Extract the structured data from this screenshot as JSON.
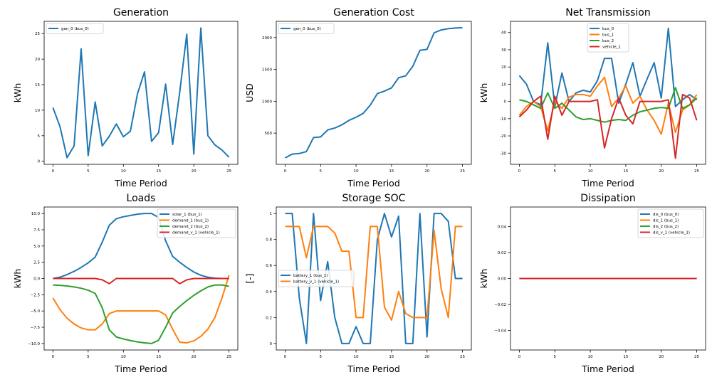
{
  "chart_data": [
    {
      "type": "line",
      "title": "Generation",
      "xlabel": "Time Period",
      "ylabel": "kWh",
      "xlim": [
        -1.25,
        26.25
      ],
      "ylim": [
        -0.6,
        27.4
      ],
      "xticks": [
        0,
        5,
        10,
        15,
        20,
        25
      ],
      "yticks": [
        0,
        5,
        10,
        15,
        20,
        25
      ],
      "legend": {
        "position": "top-left"
      },
      "series": [
        {
          "name": "gen_0 (bus_0)",
          "color": "#1f77b4",
          "x": [
            0,
            1,
            2,
            3,
            4,
            5,
            6,
            7,
            8,
            9,
            10,
            11,
            12,
            13,
            14,
            15,
            16,
            17,
            18,
            19,
            20,
            21,
            22,
            23,
            24,
            25
          ],
          "y": [
            10.5,
            6.8,
            0.7,
            3.0,
            22.0,
            1.1,
            11.6,
            3.0,
            4.9,
            7.3,
            4.8,
            5.9,
            13.2,
            17.5,
            3.9,
            5.6,
            15.1,
            3.3,
            13.5,
            24.9,
            1.4,
            26.1,
            5.0,
            3.2,
            2.2,
            0.8
          ]
        }
      ]
    },
    {
      "type": "line",
      "title": "Generation Cost",
      "xlabel": "Time Period",
      "ylabel": "USD",
      "xlim": [
        -1.25,
        26.25
      ],
      "ylim": [
        10,
        2255
      ],
      "xticks": [
        0,
        5,
        10,
        15,
        20,
        25
      ],
      "yticks": [
        500,
        1000,
        1500,
        2000
      ],
      "legend": {
        "position": "top-left"
      },
      "series": [
        {
          "name": "gen_0 (bus_0)",
          "color": "#1f77b4",
          "x": [
            0,
            1,
            2,
            3,
            4,
            5,
            6,
            7,
            8,
            9,
            10,
            11,
            12,
            13,
            14,
            15,
            16,
            17,
            18,
            19,
            20,
            21,
            22,
            23,
            24,
            25
          ],
          "y": [
            110,
            170,
            180,
            210,
            430,
            440,
            550,
            580,
            630,
            700,
            750,
            810,
            940,
            1120,
            1160,
            1210,
            1370,
            1400,
            1550,
            1800,
            1815,
            2075,
            2120,
            2140,
            2150,
            2155
          ]
        }
      ]
    },
    {
      "type": "line",
      "title": "Net Transmission",
      "xlabel": "Time Period",
      "ylabel": "kWh",
      "xlim": [
        -1.25,
        26.25
      ],
      "ylim": [
        -36.5,
        46.5
      ],
      "xticks": [
        0,
        5,
        10,
        15,
        20,
        25
      ],
      "yticks": [
        -30,
        -20,
        -10,
        0,
        10,
        20,
        30,
        40
      ],
      "legend": {
        "position": "top-center"
      },
      "series": [
        {
          "name": "bus_0",
          "color": "#1f77b4",
          "x": [
            0,
            1,
            2,
            3,
            4,
            5,
            6,
            7,
            8,
            9,
            10,
            11,
            12,
            13,
            14,
            15,
            16,
            17,
            18,
            19,
            20,
            21,
            22,
            23,
            24,
            25
          ],
          "y": [
            15,
            10,
            0,
            -2,
            34,
            -3,
            16.5,
            0,
            5,
            6.5,
            5.5,
            12,
            25,
            25,
            -1,
            10,
            22.5,
            3,
            13,
            22.5,
            2,
            42.5,
            -3,
            1,
            4,
            1
          ]
        },
        {
          "name": "bus_1",
          "color": "#ff7f0e",
          "x": [
            0,
            1,
            2,
            3,
            4,
            5,
            6,
            7,
            8,
            9,
            10,
            11,
            12,
            13,
            14,
            15,
            16,
            17,
            18,
            19,
            20,
            21,
            22,
            23,
            24,
            25
          ],
          "y": [
            -8,
            -3,
            0,
            -3,
            -17,
            0,
            -4,
            2.5,
            4,
            4,
            3,
            9,
            14,
            -3,
            2,
            9,
            -1,
            3,
            -5,
            -11,
            -19,
            -1,
            -18,
            -5,
            -2,
            4
          ]
        },
        {
          "name": "bus_2",
          "color": "#2ca02c",
          "x": [
            0,
            1,
            2,
            3,
            4,
            5,
            6,
            7,
            8,
            9,
            10,
            11,
            12,
            13,
            14,
            15,
            16,
            17,
            18,
            19,
            20,
            21,
            22,
            23,
            24,
            25
          ],
          "y": [
            1,
            0,
            -2,
            -4,
            5,
            -4,
            -1,
            -5,
            -9,
            -10.5,
            -10,
            -11,
            -12,
            -11,
            -10.5,
            -11,
            -8,
            -6,
            -5,
            -4,
            -3.5,
            -4,
            8,
            -4,
            -2,
            2
          ]
        },
        {
          "name": "vehicle_1",
          "color": "#d62728",
          "x": [
            0,
            1,
            2,
            3,
            4,
            5,
            6,
            7,
            8,
            9,
            10,
            11,
            12,
            13,
            14,
            15,
            16,
            17,
            18,
            19,
            20,
            21,
            22,
            23,
            24,
            25
          ],
          "y": [
            -9,
            -5,
            0,
            3,
            -22,
            3,
            -8,
            0,
            0,
            0,
            0,
            1,
            -27,
            -10,
            2,
            -8,
            -13,
            0,
            0,
            0,
            0,
            1,
            -33,
            4,
            2,
            -11
          ]
        }
      ]
    },
    {
      "type": "line",
      "title": "Loads",
      "xlabel": "Time Period",
      "ylabel": "kWh",
      "xlim": [
        -1.25,
        26.25
      ],
      "ylim": [
        -11,
        11
      ],
      "xticks": [
        0,
        5,
        10,
        15,
        20,
        25
      ],
      "yticks": [
        -10.0,
        -7.5,
        -5.0,
        -2.5,
        0.0,
        2.5,
        5.0,
        7.5,
        10.0
      ],
      "ytick_labels": [
        "−10.0",
        "−7.5",
        "−5.0",
        "−2.5",
        "0.0",
        "2.5",
        "5.0",
        "7.5",
        "10.0"
      ],
      "legend": {
        "position": "top-right"
      },
      "series": [
        {
          "name": "solar_1 (bus_1)",
          "color": "#1f77b4",
          "x": [
            0,
            1,
            2,
            3,
            4,
            5,
            6,
            7,
            8,
            9,
            10,
            11,
            12,
            13,
            14,
            15,
            16,
            17,
            18,
            19,
            20,
            21,
            22,
            23,
            24,
            25
          ],
          "y": [
            0,
            0.2,
            0.6,
            1.1,
            1.7,
            2.4,
            3.3,
            5.6,
            8.2,
            9.2,
            9.5,
            9.7,
            9.9,
            10,
            10,
            9.4,
            5.8,
            3.4,
            2.5,
            1.7,
            1.0,
            0.5,
            0.2,
            0.05,
            0,
            0
          ]
        },
        {
          "name": "demand_1 (bus_1)",
          "color": "#ff7f0e",
          "x": [
            0,
            1,
            2,
            3,
            4,
            5,
            6,
            7,
            8,
            9,
            10,
            11,
            12,
            13,
            14,
            15,
            16,
            17,
            18,
            19,
            20,
            21,
            22,
            23,
            24,
            25
          ],
          "y": [
            -3,
            -4.8,
            -6.1,
            -7.0,
            -7.6,
            -7.9,
            -7.9,
            -7.0,
            -5.4,
            -5.0,
            -5.0,
            -5.0,
            -5.0,
            -5.0,
            -5.0,
            -5.0,
            -5.6,
            -7.8,
            -9.8,
            -9.9,
            -9.6,
            -8.9,
            -7.8,
            -6.0,
            -3.0,
            0.5
          ]
        },
        {
          "name": "demand_2 (bus_2)",
          "color": "#2ca02c",
          "x": [
            0,
            1,
            2,
            3,
            4,
            5,
            6,
            7,
            8,
            9,
            10,
            11,
            12,
            13,
            14,
            15,
            16,
            17,
            18,
            19,
            20,
            21,
            22,
            23,
            24,
            25
          ],
          "y": [
            -1.0,
            -1.05,
            -1.15,
            -1.3,
            -1.5,
            -1.8,
            -2.3,
            -4.5,
            -7.9,
            -9.0,
            -9.3,
            -9.55,
            -9.75,
            -9.9,
            -10.0,
            -9.5,
            -7.5,
            -5.3,
            -4.3,
            -3.4,
            -2.6,
            -1.9,
            -1.3,
            -1.0,
            -1.0,
            -1.2
          ]
        },
        {
          "name": "demand_v_1 (vehicle_1)",
          "color": "#d62728",
          "x": [
            0,
            1,
            2,
            3,
            4,
            5,
            6,
            7,
            8,
            9,
            10,
            11,
            12,
            13,
            14,
            15,
            16,
            17,
            18,
            19,
            20,
            21,
            22,
            23,
            24,
            25
          ],
          "y": [
            0,
            0,
            0,
            0,
            0,
            0,
            0,
            -0.2,
            -0.8,
            0,
            0,
            0,
            0,
            0,
            0,
            0,
            0,
            0,
            -0.8,
            -0.2,
            0,
            0,
            0,
            0,
            0,
            0
          ]
        }
      ]
    },
    {
      "type": "line",
      "title": "Storage SOC",
      "xlabel": "Time Period",
      "ylabel": "[-]",
      "xlim": [
        -1.25,
        26.25
      ],
      "ylim": [
        -0.05,
        1.05
      ],
      "xticks": [
        0,
        5,
        10,
        15,
        20,
        25
      ],
      "yticks": [
        0.0,
        0.2,
        0.4,
        0.6,
        0.8,
        1.0
      ],
      "legend": {
        "position": "center-left"
      },
      "series": [
        {
          "name": "battery_1 (bus_1)",
          "color": "#1f77b4",
          "x": [
            0,
            1,
            2,
            3,
            4,
            5,
            6,
            7,
            8,
            9,
            10,
            11,
            12,
            13,
            14,
            15,
            16,
            17,
            18,
            19,
            20,
            21,
            22,
            23,
            24,
            25
          ],
          "y": [
            1.0,
            1.0,
            0.35,
            0.0,
            1.0,
            0.33,
            0.63,
            0.2,
            0.0,
            0.0,
            0.13,
            0.0,
            0.0,
            0.8,
            1.0,
            0.82,
            0.98,
            0.0,
            0.0,
            1.0,
            0.05,
            1.0,
            1.0,
            0.94,
            0.5,
            0.5
          ]
        },
        {
          "name": "battery_v_1 (vehicle_1)",
          "color": "#ff7f0e",
          "x": [
            0,
            1,
            2,
            3,
            4,
            5,
            6,
            7,
            8,
            9,
            10,
            11,
            12,
            13,
            14,
            15,
            16,
            17,
            18,
            19,
            20,
            21,
            22,
            23,
            24,
            25
          ],
          "y": [
            0.9,
            0.9,
            0.9,
            0.66,
            0.9,
            0.9,
            0.9,
            0.85,
            0.71,
            0.71,
            0.2,
            0.2,
            0.9,
            0.9,
            0.28,
            0.18,
            0.4,
            0.23,
            0.2,
            0.2,
            0.2,
            0.87,
            0.42,
            0.2,
            0.9,
            0.9
          ]
        }
      ]
    },
    {
      "type": "line",
      "title": "Dissipation",
      "xlabel": "Time Period",
      "ylabel": "kWh",
      "xlim": [
        -1.25,
        26.25
      ],
      "ylim": [
        -0.055,
        0.055
      ],
      "xticks": [
        0,
        5,
        10,
        15,
        20,
        25
      ],
      "yticks": [
        -0.04,
        -0.02,
        0.0,
        0.02,
        0.04
      ],
      "ytick_labels": [
        "−0.04",
        "−0.02",
        "0.00",
        "0.02",
        "0.04"
      ],
      "legend": {
        "position": "top-right"
      },
      "series": [
        {
          "name": "dis_0 (bus_0)",
          "color": "#1f77b4",
          "x": [
            0,
            25
          ],
          "y": [
            0,
            0
          ]
        },
        {
          "name": "dis_1 (bus_1)",
          "color": "#ff7f0e",
          "x": [
            0,
            25
          ],
          "y": [
            0,
            0
          ]
        },
        {
          "name": "dis_2 (bus_2)",
          "color": "#2ca02c",
          "x": [
            0,
            25
          ],
          "y": [
            0,
            0
          ]
        },
        {
          "name": "dis_v_1 (vehicle_1)",
          "color": "#d62728",
          "x": [
            0,
            25
          ],
          "y": [
            0,
            0
          ]
        }
      ]
    }
  ]
}
